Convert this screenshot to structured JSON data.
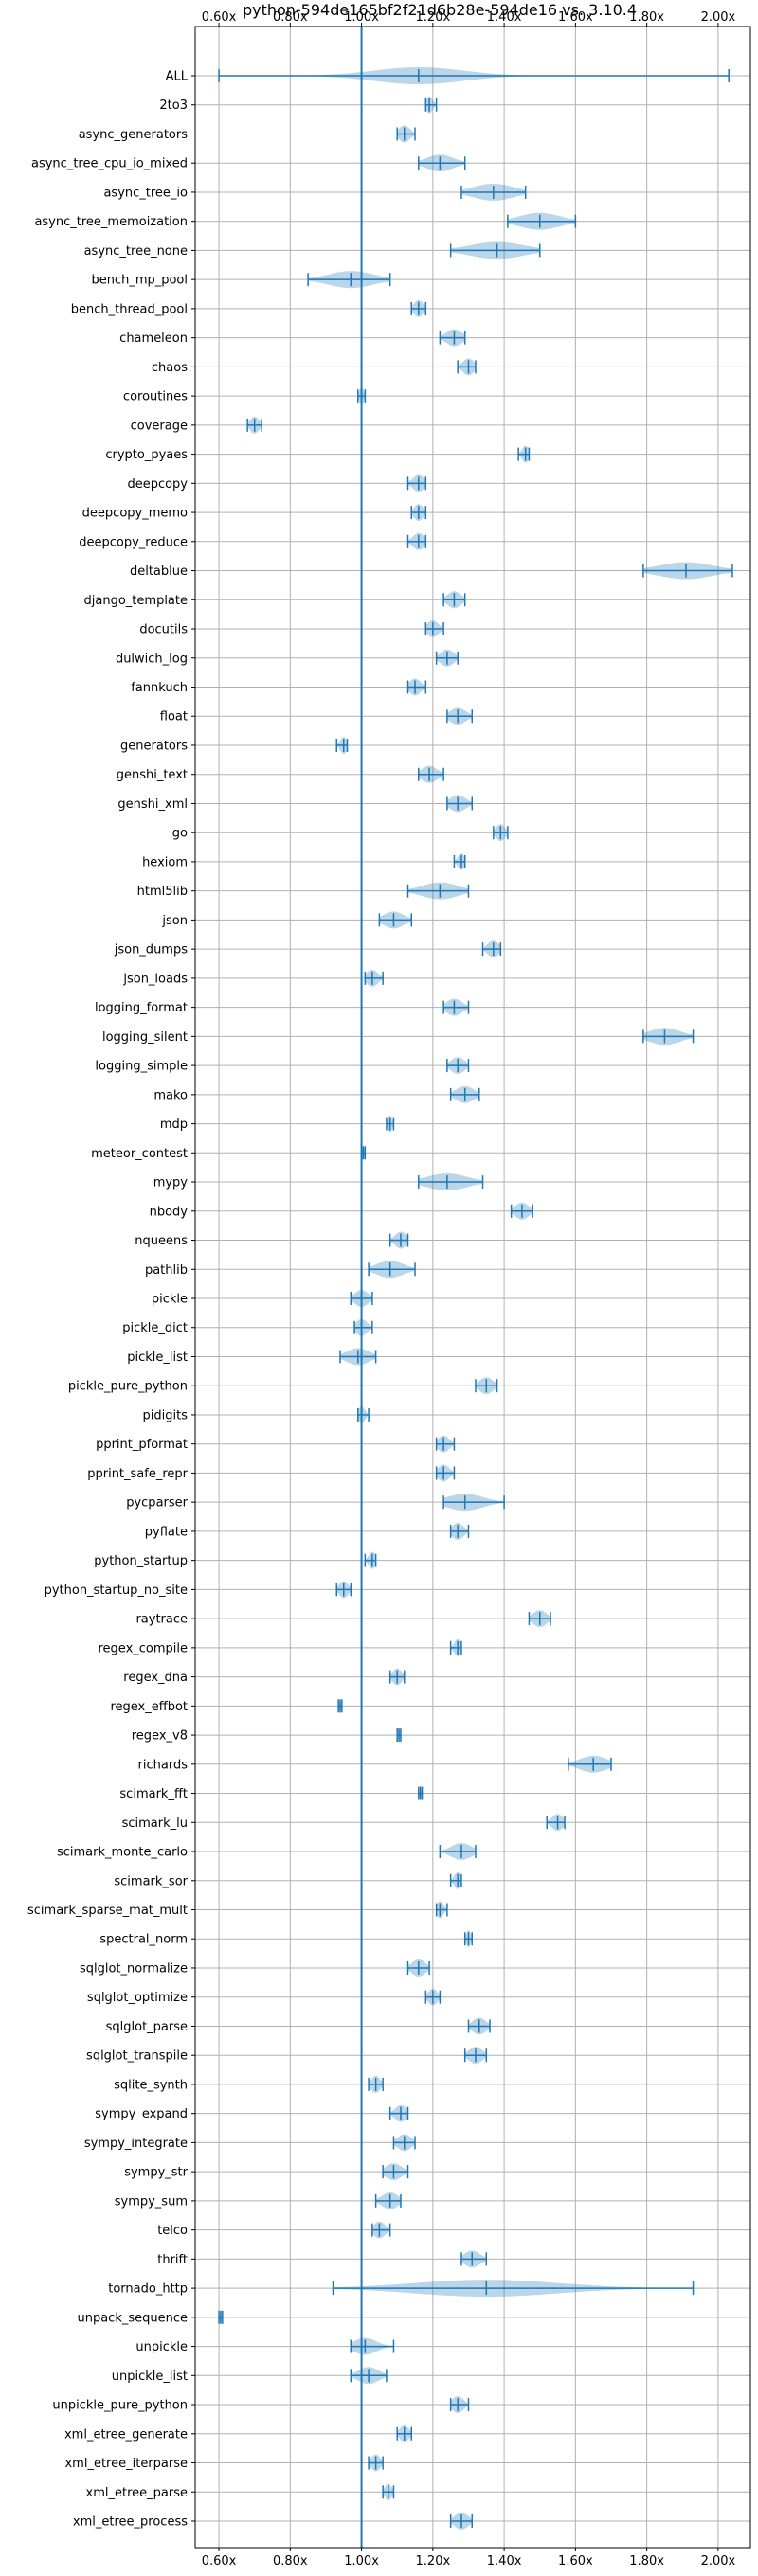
{
  "chart_data": {
    "type": "violin",
    "title": "python-594de165bf2f21d6b28e-594de16 vs. 3.10.4",
    "xlabel": "",
    "ylabel": "",
    "x_ticks": [
      "0.60x",
      "0.80x",
      "1.00x",
      "1.20x",
      "1.40x",
      "1.60x",
      "1.80x",
      "2.00x"
    ],
    "x_tick_values": [
      0.6,
      0.8,
      1.0,
      1.2,
      1.4,
      1.6,
      1.8,
      2.0
    ],
    "xlim": [
      0.56,
      2.08
    ],
    "reference_line": 1.0,
    "grid": true,
    "colors": {
      "violin_fill": "#1f77b4",
      "violin_opacity": 0.3,
      "line": "#1f77b4",
      "grid": "#b0b0b0"
    },
    "series": [
      {
        "name": "ALL",
        "min": 0.6,
        "max": 2.03,
        "median": 1.16,
        "spread": 0.2
      },
      {
        "name": "2to3",
        "min": 1.18,
        "max": 1.21,
        "median": 1.19,
        "spread": 0.015
      },
      {
        "name": "async_generators",
        "min": 1.1,
        "max": 1.15,
        "median": 1.12,
        "spread": 0.025
      },
      {
        "name": "async_tree_cpu_io_mixed",
        "min": 1.16,
        "max": 1.29,
        "median": 1.22,
        "spread": 0.06
      },
      {
        "name": "async_tree_io",
        "min": 1.28,
        "max": 1.46,
        "median": 1.37,
        "spread": 0.09
      },
      {
        "name": "async_tree_memoization",
        "min": 1.41,
        "max": 1.6,
        "median": 1.5,
        "spread": 0.09
      },
      {
        "name": "async_tree_none",
        "min": 1.25,
        "max": 1.5,
        "median": 1.38,
        "spread": 0.12
      },
      {
        "name": "bench_mp_pool",
        "min": 0.85,
        "max": 1.08,
        "median": 0.97,
        "spread": 0.1
      },
      {
        "name": "bench_thread_pool",
        "min": 1.14,
        "max": 1.18,
        "median": 1.16,
        "spread": 0.02
      },
      {
        "name": "chameleon",
        "min": 1.22,
        "max": 1.29,
        "median": 1.26,
        "spread": 0.035
      },
      {
        "name": "chaos",
        "min": 1.27,
        "max": 1.32,
        "median": 1.3,
        "spread": 0.025
      },
      {
        "name": "coroutines",
        "min": 0.99,
        "max": 1.01,
        "median": 1.0,
        "spread": 0.01
      },
      {
        "name": "coverage",
        "min": 0.68,
        "max": 0.72,
        "median": 0.7,
        "spread": 0.02
      },
      {
        "name": "crypto_pyaes",
        "min": 1.44,
        "max": 1.47,
        "median": 1.46,
        "spread": 0.015
      },
      {
        "name": "deepcopy",
        "min": 1.13,
        "max": 1.18,
        "median": 1.16,
        "spread": 0.025
      },
      {
        "name": "deepcopy_memo",
        "min": 1.14,
        "max": 1.18,
        "median": 1.16,
        "spread": 0.02
      },
      {
        "name": "deepcopy_reduce",
        "min": 1.13,
        "max": 1.18,
        "median": 1.16,
        "spread": 0.025
      },
      {
        "name": "deltablue",
        "min": 1.79,
        "max": 2.04,
        "median": 1.91,
        "spread": 0.12
      },
      {
        "name": "django_template",
        "min": 1.23,
        "max": 1.29,
        "median": 1.26,
        "spread": 0.03
      },
      {
        "name": "docutils",
        "min": 1.18,
        "max": 1.23,
        "median": 1.2,
        "spread": 0.025
      },
      {
        "name": "dulwich_log",
        "min": 1.21,
        "max": 1.27,
        "median": 1.24,
        "spread": 0.03
      },
      {
        "name": "fannkuch",
        "min": 1.13,
        "max": 1.18,
        "median": 1.15,
        "spread": 0.025
      },
      {
        "name": "float",
        "min": 1.24,
        "max": 1.31,
        "median": 1.27,
        "spread": 0.035
      },
      {
        "name": "generators",
        "min": 0.93,
        "max": 0.96,
        "median": 0.95,
        "spread": 0.015
      },
      {
        "name": "genshi_text",
        "min": 1.16,
        "max": 1.23,
        "median": 1.19,
        "spread": 0.035
      },
      {
        "name": "genshi_xml",
        "min": 1.24,
        "max": 1.31,
        "median": 1.27,
        "spread": 0.035
      },
      {
        "name": "go",
        "min": 1.37,
        "max": 1.41,
        "median": 1.39,
        "spread": 0.02
      },
      {
        "name": "hexiom",
        "min": 1.26,
        "max": 1.29,
        "median": 1.28,
        "spread": 0.015
      },
      {
        "name": "html5lib",
        "min": 1.13,
        "max": 1.3,
        "median": 1.22,
        "spread": 0.08
      },
      {
        "name": "json",
        "min": 1.05,
        "max": 1.14,
        "median": 1.09,
        "spread": 0.045
      },
      {
        "name": "json_dumps",
        "min": 1.34,
        "max": 1.39,
        "median": 1.37,
        "spread": 0.025
      },
      {
        "name": "json_loads",
        "min": 1.01,
        "max": 1.06,
        "median": 1.03,
        "spread": 0.025
      },
      {
        "name": "logging_format",
        "min": 1.23,
        "max": 1.3,
        "median": 1.26,
        "spread": 0.035
      },
      {
        "name": "logging_silent",
        "min": 1.79,
        "max": 1.93,
        "median": 1.85,
        "spread": 0.07
      },
      {
        "name": "logging_simple",
        "min": 1.24,
        "max": 1.3,
        "median": 1.27,
        "spread": 0.03
      },
      {
        "name": "mako",
        "min": 1.25,
        "max": 1.33,
        "median": 1.29,
        "spread": 0.04
      },
      {
        "name": "mdp",
        "min": 1.07,
        "max": 1.09,
        "median": 1.08,
        "spread": 0.01
      },
      {
        "name": "meteor_contest",
        "min": 1.0,
        "max": 1.01,
        "median": 1.005,
        "spread": 0.005
      },
      {
        "name": "mypy",
        "min": 1.16,
        "max": 1.34,
        "median": 1.24,
        "spread": 0.09
      },
      {
        "name": "nbody",
        "min": 1.42,
        "max": 1.48,
        "median": 1.45,
        "spread": 0.03
      },
      {
        "name": "nqueens",
        "min": 1.08,
        "max": 1.13,
        "median": 1.11,
        "spread": 0.025
      },
      {
        "name": "pathlib",
        "min": 1.02,
        "max": 1.15,
        "median": 1.08,
        "spread": 0.06
      },
      {
        "name": "pickle",
        "min": 0.97,
        "max": 1.03,
        "median": 1.0,
        "spread": 0.03
      },
      {
        "name": "pickle_dict",
        "min": 0.98,
        "max": 1.03,
        "median": 1.0,
        "spread": 0.025
      },
      {
        "name": "pickle_list",
        "min": 0.94,
        "max": 1.04,
        "median": 0.99,
        "spread": 0.05
      },
      {
        "name": "pickle_pure_python",
        "min": 1.32,
        "max": 1.38,
        "median": 1.35,
        "spread": 0.03
      },
      {
        "name": "pidigits",
        "min": 0.99,
        "max": 1.02,
        "median": 1.0,
        "spread": 0.015
      },
      {
        "name": "pprint_pformat",
        "min": 1.21,
        "max": 1.26,
        "median": 1.23,
        "spread": 0.025
      },
      {
        "name": "pprint_safe_repr",
        "min": 1.21,
        "max": 1.26,
        "median": 1.23,
        "spread": 0.025
      },
      {
        "name": "pycparser",
        "min": 1.23,
        "max": 1.4,
        "median": 1.29,
        "spread": 0.08
      },
      {
        "name": "pyflate",
        "min": 1.25,
        "max": 1.3,
        "median": 1.27,
        "spread": 0.025
      },
      {
        "name": "python_startup",
        "min": 1.01,
        "max": 1.04,
        "median": 1.03,
        "spread": 0.015
      },
      {
        "name": "python_startup_no_site",
        "min": 0.93,
        "max": 0.97,
        "median": 0.95,
        "spread": 0.02
      },
      {
        "name": "raytrace",
        "min": 1.47,
        "max": 1.53,
        "median": 1.5,
        "spread": 0.03
      },
      {
        "name": "regex_compile",
        "min": 1.25,
        "max": 1.28,
        "median": 1.27,
        "spread": 0.015
      },
      {
        "name": "regex_dna",
        "min": 1.08,
        "max": 1.12,
        "median": 1.1,
        "spread": 0.02
      },
      {
        "name": "regex_effbot",
        "min": 0.935,
        "max": 0.945,
        "median": 0.94,
        "spread": 0.005
      },
      {
        "name": "regex_v8",
        "min": 1.1,
        "max": 1.11,
        "median": 1.105,
        "spread": 0.005
      },
      {
        "name": "richards",
        "min": 1.58,
        "max": 1.7,
        "median": 1.65,
        "spread": 0.06
      },
      {
        "name": "scimark_fft",
        "min": 1.16,
        "max": 1.17,
        "median": 1.165,
        "spread": 0.005
      },
      {
        "name": "scimark_lu",
        "min": 1.52,
        "max": 1.57,
        "median": 1.55,
        "spread": 0.025
      },
      {
        "name": "scimark_monte_carlo",
        "min": 1.22,
        "max": 1.32,
        "median": 1.28,
        "spread": 0.045
      },
      {
        "name": "scimark_sor",
        "min": 1.25,
        "max": 1.28,
        "median": 1.27,
        "spread": 0.015
      },
      {
        "name": "scimark_sparse_mat_mult",
        "min": 1.21,
        "max": 1.24,
        "median": 1.22,
        "spread": 0.015
      },
      {
        "name": "spectral_norm",
        "min": 1.29,
        "max": 1.31,
        "median": 1.3,
        "spread": 0.01
      },
      {
        "name": "sqlglot_normalize",
        "min": 1.13,
        "max": 1.19,
        "median": 1.16,
        "spread": 0.03
      },
      {
        "name": "sqlglot_optimize",
        "min": 1.18,
        "max": 1.22,
        "median": 1.2,
        "spread": 0.02
      },
      {
        "name": "sqlglot_parse",
        "min": 1.3,
        "max": 1.36,
        "median": 1.33,
        "spread": 0.03
      },
      {
        "name": "sqlglot_transpile",
        "min": 1.29,
        "max": 1.35,
        "median": 1.32,
        "spread": 0.03
      },
      {
        "name": "sqlite_synth",
        "min": 1.02,
        "max": 1.06,
        "median": 1.04,
        "spread": 0.02
      },
      {
        "name": "sympy_expand",
        "min": 1.08,
        "max": 1.13,
        "median": 1.11,
        "spread": 0.025
      },
      {
        "name": "sympy_integrate",
        "min": 1.09,
        "max": 1.15,
        "median": 1.12,
        "spread": 0.03
      },
      {
        "name": "sympy_str",
        "min": 1.06,
        "max": 1.13,
        "median": 1.09,
        "spread": 0.035
      },
      {
        "name": "sympy_sum",
        "min": 1.04,
        "max": 1.11,
        "median": 1.08,
        "spread": 0.035
      },
      {
        "name": "telco",
        "min": 1.03,
        "max": 1.08,
        "median": 1.05,
        "spread": 0.025
      },
      {
        "name": "thrift",
        "min": 1.28,
        "max": 1.35,
        "median": 1.31,
        "spread": 0.035
      },
      {
        "name": "tornado_http",
        "min": 0.92,
        "max": 1.93,
        "median": 1.35,
        "spread": 0.32
      },
      {
        "name": "unpack_sequence",
        "min": 0.6,
        "max": 0.61,
        "median": 0.605,
        "spread": 0.005
      },
      {
        "name": "unpickle",
        "min": 0.97,
        "max": 1.09,
        "median": 1.01,
        "spread": 0.05
      },
      {
        "name": "unpickle_list",
        "min": 0.97,
        "max": 1.07,
        "median": 1.02,
        "spread": 0.045
      },
      {
        "name": "unpickle_pure_python",
        "min": 1.25,
        "max": 1.3,
        "median": 1.27,
        "spread": 0.025
      },
      {
        "name": "xml_etree_generate",
        "min": 1.1,
        "max": 1.14,
        "median": 1.12,
        "spread": 0.02
      },
      {
        "name": "xml_etree_iterparse",
        "min": 1.02,
        "max": 1.06,
        "median": 1.04,
        "spread": 0.02
      },
      {
        "name": "xml_etree_parse",
        "min": 1.06,
        "max": 1.09,
        "median": 1.075,
        "spread": 0.015
      },
      {
        "name": "xml_etree_process",
        "min": 1.25,
        "max": 1.31,
        "median": 1.28,
        "spread": 0.03
      }
    ]
  }
}
